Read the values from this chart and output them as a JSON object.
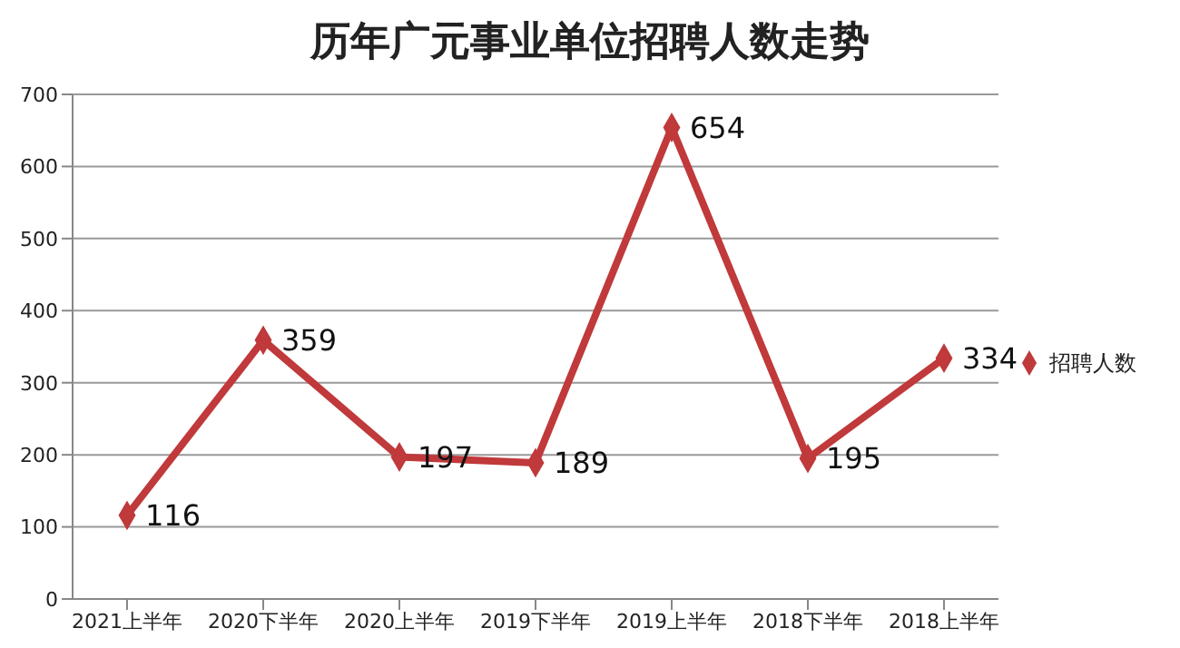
{
  "chart_data": {
    "type": "line",
    "title": "历年广元事业单位招聘人数走势",
    "categories": [
      "2021上半年",
      "2020下半年",
      "2020上半年",
      "2019下半年",
      "2019上半年",
      "2018下半年",
      "2018上半年"
    ],
    "series": [
      {
        "name": "招聘人数",
        "color": "#c0393b",
        "values": [
          116,
          359,
          197,
          189,
          654,
          195,
          334
        ]
      }
    ],
    "ylim": [
      0,
      700
    ],
    "yticks": [
      0,
      100,
      200,
      300,
      400,
      500,
      600,
      700
    ],
    "grid": "y",
    "legend": "right",
    "marker": "diamond",
    "line_style": "solid",
    "data_labels": true
  }
}
